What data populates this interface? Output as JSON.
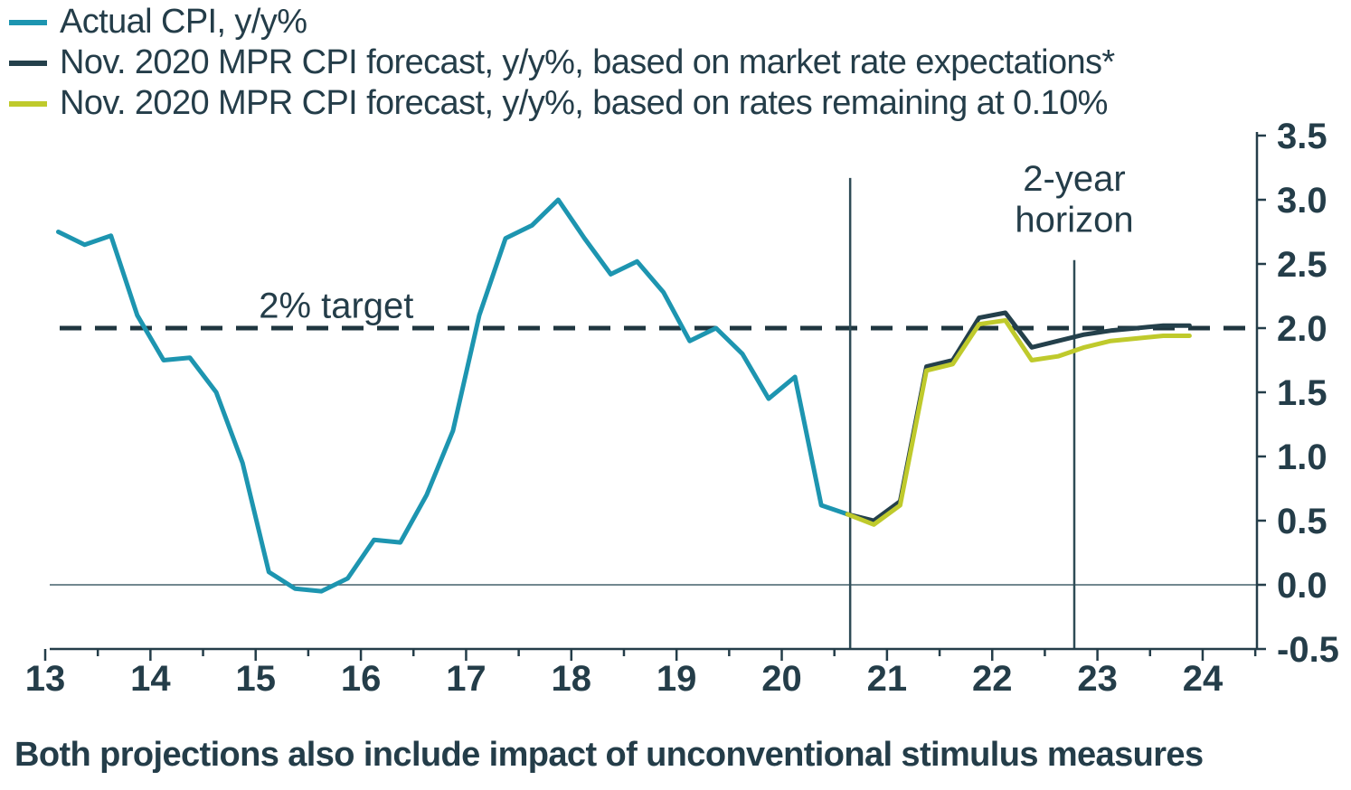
{
  "legend": {
    "items": [
      {
        "id": "actual-cpi",
        "label": "Actual CPI, y/y%",
        "color": "#1d95b0"
      },
      {
        "id": "mpr-market-rates",
        "label": "Nov. 2020 MPR CPI forecast, y/y%, based on market rate expectations*",
        "color": "#24404b"
      },
      {
        "id": "mpr-constant-rate",
        "label": "Nov. 2020 MPR CPI forecast, y/y%, based on rates remaining at 0.10%",
        "color": "#bfca2c"
      }
    ]
  },
  "annotations": {
    "target_label": "2% target",
    "horizon_label_line1": "2-year",
    "horizon_label_line2": "horizon",
    "footnote": "Both projections also include impact of unconventional stimulus measures"
  },
  "chart_data": {
    "type": "line",
    "title": "",
    "xlabel": "",
    "ylabel": "",
    "xlim": [
      12.95,
      24.55
    ],
    "ylim": [
      -0.5,
      3.5
    ],
    "grid": false,
    "legend_position": "top-left",
    "x_ticks": [
      13,
      14,
      15,
      16,
      17,
      18,
      19,
      20,
      21,
      22,
      23,
      24
    ],
    "y_ticks": [
      -0.5,
      0.0,
      0.5,
      1.0,
      1.5,
      2.0,
      2.5,
      3.0,
      3.5
    ],
    "target_line": 2.0,
    "forecast_start_vline": {
      "x": 20.65,
      "y_top": 3.17,
      "y_bottom": -0.5
    },
    "horizon_vline": {
      "x": 22.78,
      "y_top": 2.53,
      "y_bottom": -0.5
    },
    "series": [
      {
        "id": "actual-cpi",
        "name": "Actual CPI, y/y%",
        "color": "#1d95b0",
        "x": [
          13.125,
          13.375,
          13.625,
          13.875,
          14.125,
          14.375,
          14.625,
          14.875,
          15.125,
          15.375,
          15.625,
          15.875,
          16.125,
          16.375,
          16.625,
          16.875,
          17.125,
          17.375,
          17.625,
          17.875,
          18.125,
          18.375,
          18.625,
          18.875,
          19.125,
          19.375,
          19.625,
          19.875,
          20.125,
          20.375,
          20.625
        ],
        "y": [
          2.75,
          2.65,
          2.72,
          2.1,
          1.75,
          1.77,
          1.5,
          0.95,
          0.1,
          -0.03,
          -0.05,
          0.05,
          0.35,
          0.33,
          0.7,
          1.2,
          2.1,
          2.7,
          2.8,
          3.0,
          2.7,
          2.42,
          2.52,
          2.28,
          1.9,
          2.0,
          1.8,
          1.45,
          1.62,
          0.62,
          0.55
        ]
      },
      {
        "id": "mpr-market-rates",
        "name": "Nov. 2020 MPR CPI forecast, y/y%, based on market rate expectations*",
        "color": "#24404b",
        "x": [
          20.625,
          20.875,
          21.125,
          21.375,
          21.625,
          21.875,
          22.125,
          22.375,
          22.625,
          22.875,
          23.125,
          23.375,
          23.625,
          23.875
        ],
        "y": [
          0.55,
          0.5,
          0.65,
          1.7,
          1.75,
          2.08,
          2.12,
          1.85,
          1.9,
          1.95,
          1.98,
          2.0,
          2.02,
          2.02
        ]
      },
      {
        "id": "mpr-constant-rate",
        "name": "Nov. 2020 MPR CPI forecast, y/y%, based on rates remaining at 0.10%",
        "color": "#bfca2c",
        "x": [
          20.625,
          20.875,
          21.125,
          21.375,
          21.625,
          21.875,
          22.125,
          22.375,
          22.625,
          22.875,
          23.125,
          23.375,
          23.625,
          23.875
        ],
        "y": [
          0.55,
          0.47,
          0.62,
          1.67,
          1.72,
          2.03,
          2.06,
          1.75,
          1.78,
          1.85,
          1.9,
          1.92,
          1.94,
          1.94
        ]
      }
    ]
  }
}
